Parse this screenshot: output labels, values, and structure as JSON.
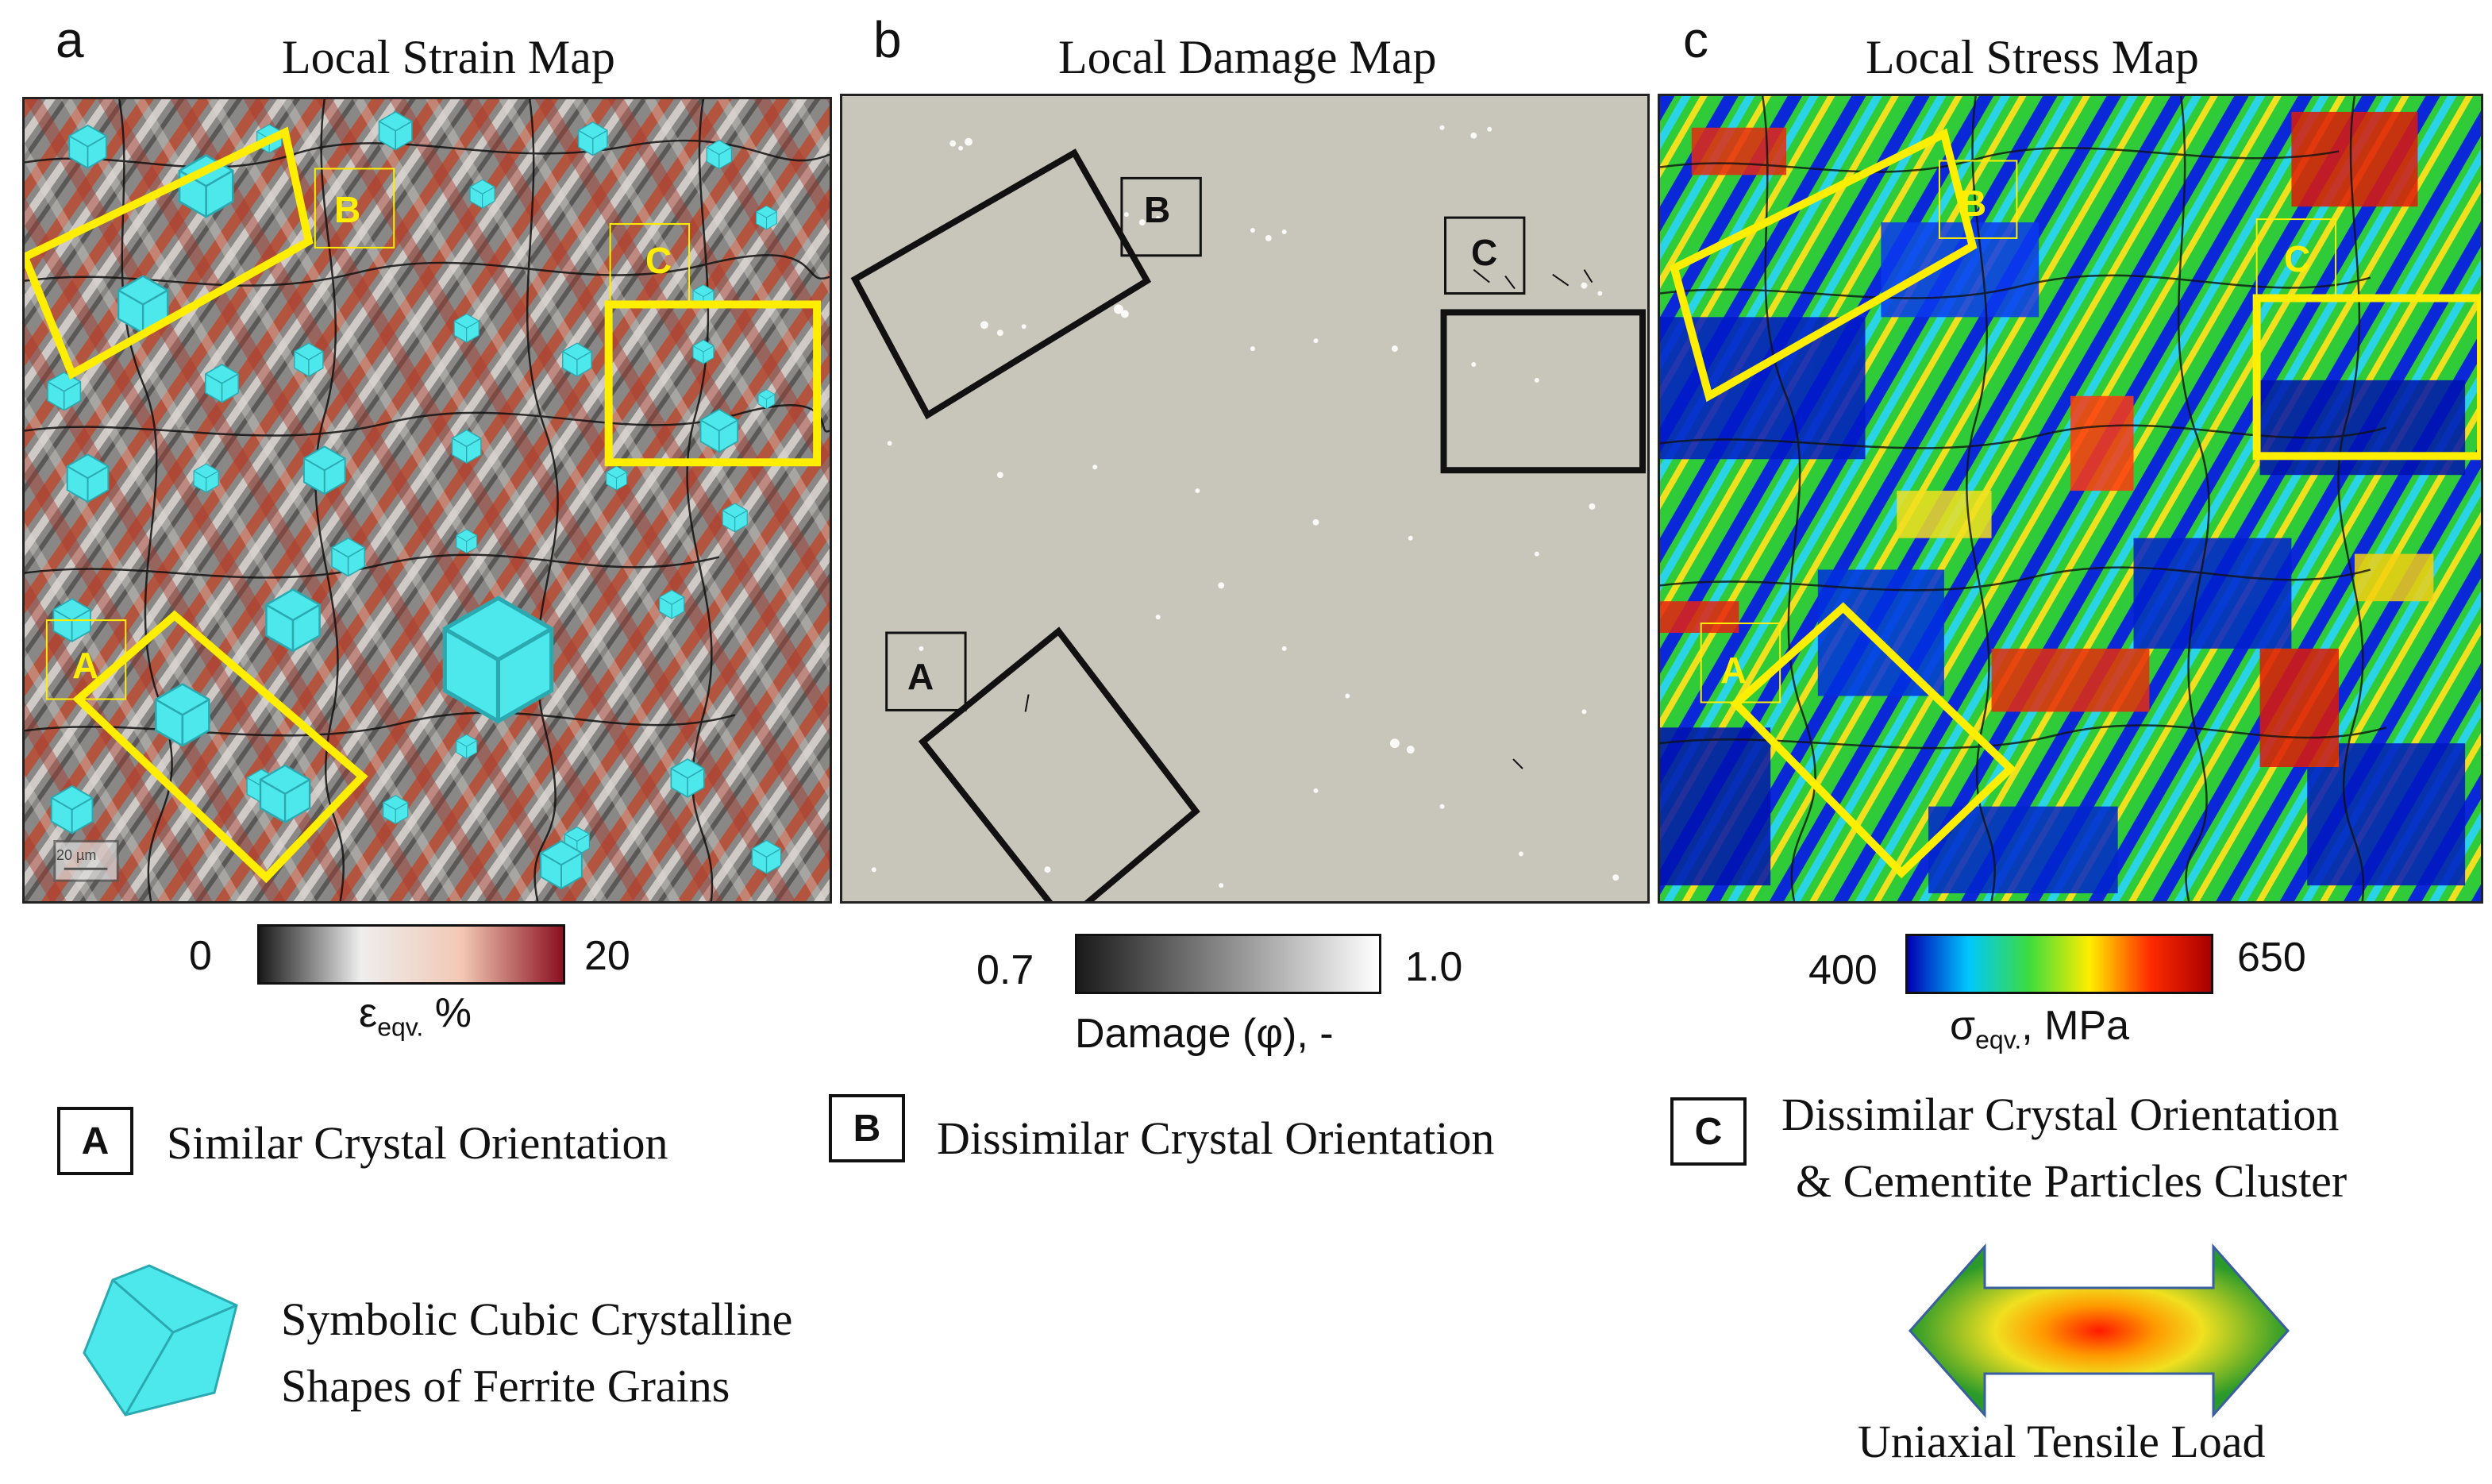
{
  "panels": [
    {
      "letter": "a",
      "title": "Local Strain Map",
      "colorbar": {
        "min": "0",
        "max": "20",
        "label": "ε",
        "label_sub": "eqv.",
        "label_unit": "%",
        "colors": [
          "#1a1a1a",
          "#eeeeee",
          "#f2c8b4",
          "#8b1020"
        ]
      }
    },
    {
      "letter": "b",
      "title": "Local Damage Map",
      "colorbar": {
        "min": "0.7",
        "max": "1.0",
        "label": "Damage (φ), -",
        "colors": [
          "#1a1a1a",
          "#ffffff"
        ]
      }
    },
    {
      "letter": "c",
      "title": "Local Stress Map",
      "colorbar": {
        "min": "400",
        "max": "650",
        "label": "σ",
        "label_sub": "eqv.",
        "label_unit": ", MPa",
        "colors": [
          "#0000b4",
          "#00c8ff",
          "#3ddc3d",
          "#ffee00",
          "#ff2a00",
          "#a80000"
        ]
      }
    }
  ],
  "region_labels": {
    "A": "A",
    "B": "B",
    "C": "C"
  },
  "scale_bar_text": "20 µm",
  "legend": {
    "A": {
      "key": "A",
      "text": "Similar Crystal Orientation"
    },
    "B": {
      "key": "B",
      "text": "Dissimilar Crystal Orientation"
    },
    "C": {
      "key": "C",
      "text_line1": "Dissimilar Crystal Orientation",
      "text_line2": "& Cementite Particles Cluster"
    },
    "cube": {
      "line1": "Symbolic Cubic Crystalline",
      "line2": "Shapes of Ferrite Grains"
    },
    "load": {
      "label": "Uniaxial Tensile Load"
    }
  },
  "colors": {
    "highlight_yellow": "#ffee00",
    "cube_cyan": "#4de8ec",
    "damage_gray": "#c8c5bb"
  }
}
